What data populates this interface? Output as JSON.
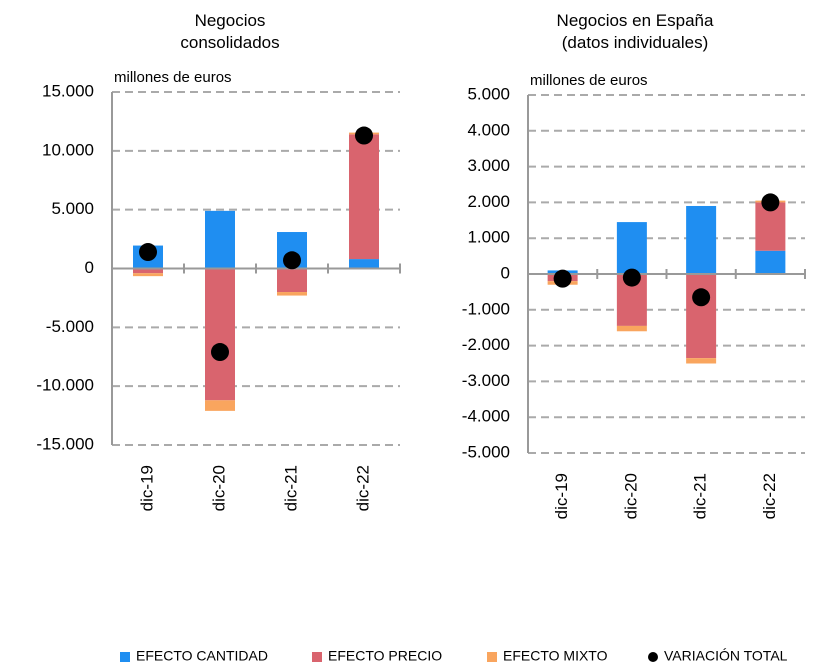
{
  "chart_data": [
    {
      "type": "bar",
      "stacked": true,
      "title": "Negocios\nconsolidados",
      "y_label": "millones  de euros",
      "categories": [
        "dic-19",
        "dic-20",
        "dic-21",
        "dic-22"
      ],
      "series": [
        {
          "name": "EFECTO CANTIDAD",
          "color": "#1f8ef1",
          "values": [
            1950,
            4900,
            3100,
            800
          ]
        },
        {
          "name": "EFECTO PRECIO",
          "color": "#d9646e",
          "values": [
            -400,
            -11200,
            -2000,
            10600
          ]
        },
        {
          "name": "EFECTO MIXTO",
          "color": "#f9a55e",
          "values": [
            -250,
            -900,
            -300,
            150
          ]
        },
        {
          "name": "VARIACIÓN TOTAL",
          "color": "#000000",
          "type": "scatter",
          "values": [
            1400,
            -7100,
            700,
            11300
          ]
        }
      ],
      "ylim": [
        -15000,
        15000
      ],
      "yticks": [
        {
          "value": -15000,
          "label": "-15.000"
        },
        {
          "value": -10000,
          "label": "-10.000"
        },
        {
          "value": -5000,
          "label": "-5.000"
        },
        0,
        {
          "value": 5000,
          "label": "5.000"
        },
        {
          "value": 10000,
          "label": "10.000"
        },
        {
          "value": 15000,
          "label": "15.000"
        }
      ],
      "grid": true
    },
    {
      "type": "bar",
      "stacked": true,
      "title": "Negocios en España\n (datos individuales)",
      "y_label": "millones  de euros",
      "categories": [
        "dic-19",
        "dic-20",
        "dic-21",
        "dic-22"
      ],
      "series": [
        {
          "name": "EFECTO CANTIDAD",
          "color": "#1f8ef1",
          "values": [
            100,
            1450,
            1900,
            650
          ]
        },
        {
          "name": "EFECTO PRECIO",
          "color": "#d9646e",
          "values": [
            -200,
            -1450,
            -2350,
            1350
          ]
        },
        {
          "name": "EFECTO MIXTO",
          "color": "#f9a55e",
          "values": [
            -100,
            -150,
            -150,
            50
          ]
        },
        {
          "name": "VARIACIÓN TOTAL",
          "color": "#000000",
          "type": "scatter",
          "values": [
            -130,
            -100,
            -650,
            2000
          ]
        }
      ],
      "ylim": [
        -5000,
        5000
      ],
      "yticks": [
        {
          "value": -5000,
          "label": "-5.000"
        },
        {
          "value": -4000,
          "label": "-4.000"
        },
        {
          "value": -3000,
          "label": "-3.000"
        },
        {
          "value": -2000,
          "label": "-2.000"
        },
        {
          "value": -1000,
          "label": "-1.000"
        },
        0,
        {
          "value": 1000,
          "label": "1.000"
        },
        {
          "value": 2000,
          "label": "2.000"
        },
        {
          "value": 3000,
          "label": "3.000"
        },
        {
          "value": 4000,
          "label": "4.000"
        },
        {
          "value": 5000,
          "label": "5.000"
        }
      ],
      "grid": true
    }
  ]
}
